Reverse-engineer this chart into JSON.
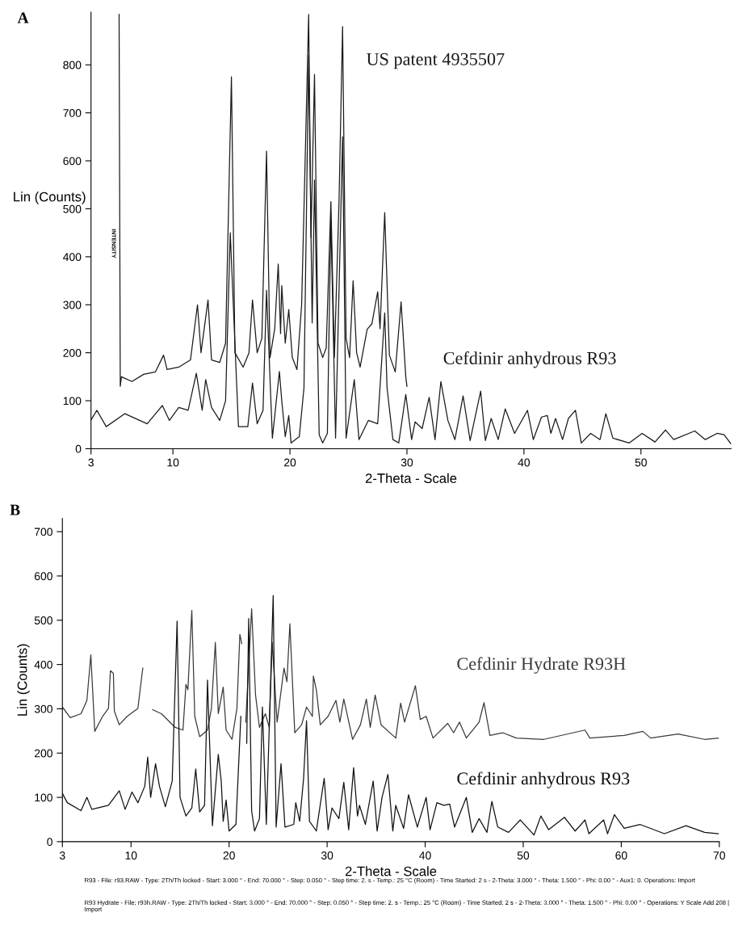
{
  "chart_data": [
    {
      "type": "line",
      "xlabel": "2-Theta - Scale",
      "ylabel": "Lin (Counts)",
      "xlim": [
        3,
        57.7
      ],
      "ylim": [
        0,
        910
      ],
      "xticks": [
        3,
        10,
        20,
        30,
        40,
        50
      ],
      "yticks": [
        0,
        100,
        200,
        300,
        400,
        500,
        600,
        700,
        800
      ],
      "grid": false,
      "legend": false,
      "annotations": [
        "A",
        "INTENSITY"
      ],
      "series": [
        {
          "name": "Cefdinir anhydrous R93",
          "color": "#1a1a1a",
          "x": [
            3.0,
            3.5,
            4.3,
            5.9,
            7.8,
            9.1,
            9.7,
            10.5,
            11.3,
            12.0,
            12.5,
            12.8,
            13.3,
            14.0,
            14.5,
            14.9,
            15.6,
            16.4,
            16.8,
            17.2,
            17.7,
            18.0,
            18.5,
            19.1,
            19.3,
            19.6,
            19.9,
            20.1,
            20.8,
            21.2,
            21.6,
            21.9,
            22.1,
            22.5,
            22.8,
            23.2,
            23.5,
            23.9,
            24.5,
            24.8,
            25.5,
            25.9,
            26.7,
            27.5,
            28.1,
            28.3,
            28.8,
            29.3,
            29.9,
            30.4,
            30.7,
            31.3,
            31.9,
            32.4,
            32.9,
            33.5,
            34.1,
            34.8,
            35.4,
            36.3,
            36.7,
            37.2,
            37.8,
            38.4,
            39.2,
            40.3,
            40.8,
            41.5,
            42.0,
            42.3,
            42.7,
            43.3,
            43.8,
            44.4,
            44.9,
            45.7,
            46.5,
            47.0,
            47.6,
            49.0,
            50.1,
            51.2,
            52.1,
            52.8,
            54.6,
            55.5,
            56.5,
            57.1,
            57.7
          ],
          "values": [
            60,
            80,
            46,
            73,
            52,
            90,
            59,
            86,
            80,
            157,
            80,
            144,
            86,
            59,
            100,
            450,
            46,
            46,
            137,
            52,
            80,
            330,
            22,
            161,
            100,
            25,
            69,
            12,
            25,
            127,
            820,
            262,
            560,
            29,
            12,
            32,
            480,
            22,
            650,
            22,
            144,
            19,
            59,
            52,
            283,
            127,
            19,
            12,
            113,
            19,
            56,
            42,
            107,
            19,
            140,
            59,
            19,
            110,
            17,
            120,
            17,
            63,
            19,
            83,
            32,
            80,
            19,
            66,
            69,
            32,
            63,
            19,
            63,
            80,
            12,
            32,
            19,
            73,
            22,
            12,
            32,
            14,
            39,
            19,
            37,
            19,
            32,
            29,
            10
          ]
        },
        {
          "name": "US patent 4935507",
          "color": "#1a1a1a",
          "x": [
            5.4,
            5.5,
            5.6,
            6.5,
            7.5,
            8.5,
            9.2,
            9.5,
            10.5,
            11.5,
            12.1,
            12.4,
            13.0,
            13.3,
            14.0,
            14.5,
            15.0,
            15.3,
            16.0,
            16.5,
            16.8,
            17.2,
            17.6,
            18.0,
            18.3,
            18.7,
            19.0,
            19.2,
            19.3,
            19.6,
            19.9,
            20.2,
            20.6,
            21.0,
            21.3,
            21.6,
            21.8,
            22.1,
            22.4,
            22.8,
            23.1,
            23.5,
            23.8,
            24.2,
            24.5,
            24.8,
            25.1,
            25.4,
            25.7,
            26.0,
            26.6,
            27.0,
            27.5,
            27.7,
            28.1,
            28.5,
            29.0,
            29.5,
            29.9,
            30.0
          ],
          "values": [
            905,
            130,
            150,
            140,
            155,
            160,
            195,
            165,
            170,
            185,
            300,
            200,
            310,
            185,
            180,
            220,
            775,
            200,
            170,
            200,
            310,
            200,
            230,
            620,
            190,
            250,
            385,
            240,
            340,
            220,
            290,
            190,
            165,
            300,
            600,
            905,
            440,
            780,
            220,
            190,
            210,
            515,
            190,
            520,
            880,
            230,
            190,
            350,
            200,
            170,
            249,
            260,
            327,
            250,
            492,
            195,
            160,
            306,
            150,
            130
          ]
        }
      ]
    },
    {
      "type": "line",
      "xlabel": "2-Theta - Scale",
      "ylabel": "Lin (Counts)",
      "xlim": [
        3,
        70
      ],
      "ylim": [
        0,
        730
      ],
      "xticks": [
        3,
        10,
        20,
        30,
        40,
        50,
        60,
        70
      ],
      "yticks": [
        0,
        100,
        200,
        300,
        400,
        500,
        600,
        700
      ],
      "grid": false,
      "legend": false,
      "annotations": [
        "B",
        "R93 - File: r93.RAW - Type: 2Th/Th locked - Start: 3.000 ° - End: 70.000 ° - Step: 0.050 ° - Step time: 2. s - Temp.: 25 °C (Room) - Time Started: 2 s - 2-Theta: 3.000 ° - Theta: 1.500 ° - Phi: 0.00 ° - Aux1: 0. Operations: Import",
        "R93 Hydrate - File: r93h.RAW - Type: 2Th/Th locked - Start: 3.000 ° - End: 70.000 ° - Step: 0.050 ° - Step time: 2. s - Temp.: 25 °C (Room) - Time Started: 2 s - 2-Theta: 3.000 ° - Theta: 1.500 ° - Phi: 0.00 ° - Operations: Y Scale Add 208 | Import"
      ],
      "series": [
        {
          "name": "Cefdinir Hydrate R93H",
          "color": "#3a3a3a",
          "x": [
            3.0,
            3.8,
            4.9,
            5.5,
            5.9,
            6.3,
            7.1,
            7.7,
            7.9,
            8.2,
            8.3,
            8.8,
            9.6,
            10.7,
            11.2,
            11.6,
            11.9,
            12.2,
            13.1,
            14.5,
            15.3,
            15.6,
            15.8,
            16.2,
            16.5,
            17.0,
            17.8,
            18.2,
            18.6,
            18.9,
            19.4,
            19.7,
            20.3,
            20.8,
            21.1,
            21.3,
            21.5,
            21.7,
            22.3,
            22.7,
            23.1,
            23.7,
            24.1,
            24.4,
            24.9,
            25.6,
            25.9,
            26.2,
            26.7,
            27.4,
            27.9,
            28.5,
            28.6,
            28.9,
            29.3,
            30.1,
            30.9,
            31.3,
            31.7,
            32.6,
            33.4,
            34.0,
            34.4,
            34.9,
            35.5,
            37.0,
            37.5,
            37.9,
            39.0,
            39.5,
            40.1,
            40.8,
            42.3,
            42.9,
            43.5,
            44.2,
            45.5,
            46.0,
            46.6,
            47.9,
            49.3,
            52.1,
            56.3,
            56.8,
            60.3,
            62.2,
            63.0,
            65.8,
            68.5,
            69.9
          ],
          "values": [
            304,
            280,
            289,
            319,
            422,
            249,
            283,
            301,
            386,
            380,
            295,
            264,
            283,
            301,
            392,
            null,
            null,
            298,
            289,
            258,
            252,
            355,
            343,
            522,
            283,
            237,
            252,
            301,
            450,
            289,
            349,
            252,
            231,
            301,
            468,
            447,
            null,
            270,
            526,
            331,
            258,
            289,
            258,
            450,
            270,
            392,
            361,
            492,
            246,
            264,
            304,
            283,
            374,
            343,
            264,
            283,
            319,
            270,
            322,
            231,
            264,
            322,
            258,
            331,
            264,
            234,
            313,
            270,
            352,
            276,
            283,
            234,
            267,
            246,
            270,
            234,
            270,
            314,
            240,
            246,
            234,
            231,
            252,
            234,
            240,
            249,
            234,
            243,
            231,
            234
          ]
        },
        {
          "name": "Cefdinir anhydrous R93",
          "color": "#111111",
          "x": [
            3.0,
            3.5,
            4.9,
            5.5,
            6.0,
            7.7,
            8.8,
            9.4,
            10.1,
            10.7,
            11.4,
            11.7,
            12.0,
            12.5,
            12.9,
            13.5,
            14.2,
            14.7,
            15.0,
            15.6,
            16.2,
            16.6,
            17.0,
            17.5,
            17.8,
            18.3,
            18.9,
            19.2,
            19.4,
            19.7,
            20.0,
            20.7,
            21.2,
            21.5,
            21.8,
            22.0,
            22.3,
            22.6,
            23.1,
            23.4,
            23.8,
            24.5,
            24.8,
            25.3,
            25.7,
            26.6,
            26.8,
            27.2,
            27.6,
            27.9,
            28.2,
            28.9,
            29.7,
            30.1,
            30.5,
            31.2,
            31.7,
            32.2,
            32.7,
            33.1,
            33.3,
            33.9,
            34.7,
            35.1,
            35.6,
            36.2,
            36.7,
            37.0,
            37.8,
            38.3,
            39.2,
            40.1,
            40.5,
            41.2,
            41.9,
            42.5,
            43.0,
            44.2,
            44.8,
            45.5,
            46.3,
            46.8,
            47.4,
            48.5,
            49.7,
            51.1,
            51.8,
            52.6,
            54.2,
            55.3,
            56.3,
            56.7,
            58.2,
            58.6,
            59.3,
            60.3,
            61.9,
            64.4,
            66.6,
            68.5,
            69.9
          ],
          "values": [
            109,
            88,
            70,
            100,
            73,
            82,
            115,
            73,
            112,
            88,
            125,
            191,
            100,
            176,
            125,
            79,
            137,
            498,
            100,
            58,
            76,
            164,
            67,
            82,
            365,
            36,
            197,
            137,
            46,
            94,
            24,
            39,
            283,
            null,
            222,
            504,
            70,
            24,
            52,
            304,
            39,
            556,
            33,
            176,
            33,
            39,
            88,
            46,
            143,
            273,
            46,
            24,
            143,
            27,
            76,
            52,
            134,
            27,
            167,
            58,
            82,
            39,
            137,
            24,
            100,
            152,
            24,
            82,
            30,
            106,
            33,
            100,
            27,
            88,
            82,
            85,
            33,
            100,
            21,
            52,
            21,
            91,
            33,
            21,
            49,
            15,
            58,
            27,
            55,
            24,
            49,
            18,
            49,
            18,
            61,
            30,
            39,
            18,
            36,
            21,
            18
          ]
        }
      ]
    }
  ]
}
